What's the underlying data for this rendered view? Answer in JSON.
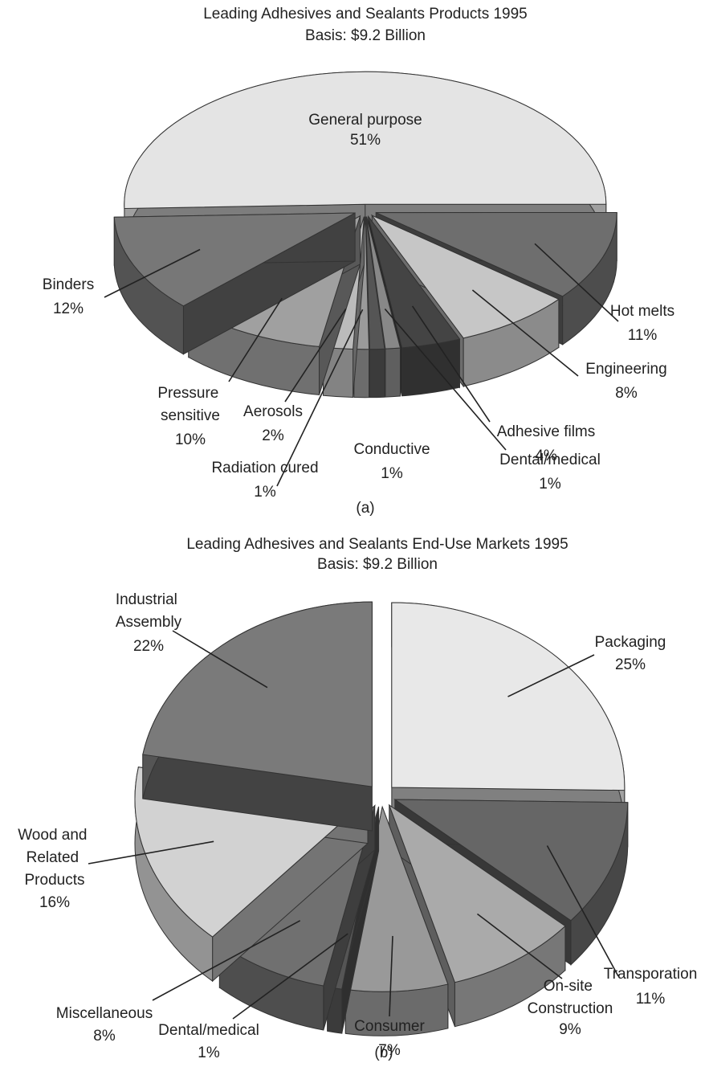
{
  "chart_data": [
    {
      "type": "pie3d",
      "title": "Leading Adhesives and Sealants Products 1995",
      "subtitle": "Basis: $9.2 Billion",
      "caption": "(a)",
      "categories": [
        "General purpose",
        "Hot melts",
        "Engineering",
        "Adhesive films",
        "Dental/medical",
        "Conductive",
        "Radiation cured",
        "Aerosols",
        "Pressure\nsensitive",
        "Binders"
      ],
      "values": [
        51,
        11,
        8,
        4,
        1,
        1,
        1,
        2,
        10,
        12
      ],
      "value_labels": [
        "51%",
        "11%",
        "8%",
        "4%",
        "1%",
        "1%",
        "1%",
        "2%",
        "10%",
        "12%"
      ],
      "colors": [
        "#e4e4e4",
        "#6e6e6e",
        "#c6c6c6",
        "#444444",
        "#888888",
        "#555555",
        "#9a9a9a",
        "#bbbbbb",
        "#a0a0a0",
        "#777777"
      ]
    },
    {
      "type": "pie3d",
      "title": "Leading Adhesives and Sealants End-Use Markets 1995",
      "subtitle": "Basis: $9.2 Billion",
      "caption": "(b)",
      "categories": [
        "Packaging",
        "Transporation",
        "On-site\nConstruction",
        "Consumer",
        "Dental/medical",
        "Miscellaneous",
        "Wood and\nRelated\nProducts",
        "Industrial\nAssembly"
      ],
      "values": [
        25,
        11,
        9,
        7,
        1,
        8,
        16,
        22
      ],
      "value_labels": [
        "25%",
        "11%",
        "9%",
        "7%",
        "1%",
        "8%",
        "16%",
        "22%"
      ],
      "colors": [
        "#e8e8e8",
        "#666666",
        "#aaaaaa",
        "#999999",
        "#555555",
        "#707070",
        "#d2d2d2",
        "#7a7a7a"
      ]
    }
  ]
}
